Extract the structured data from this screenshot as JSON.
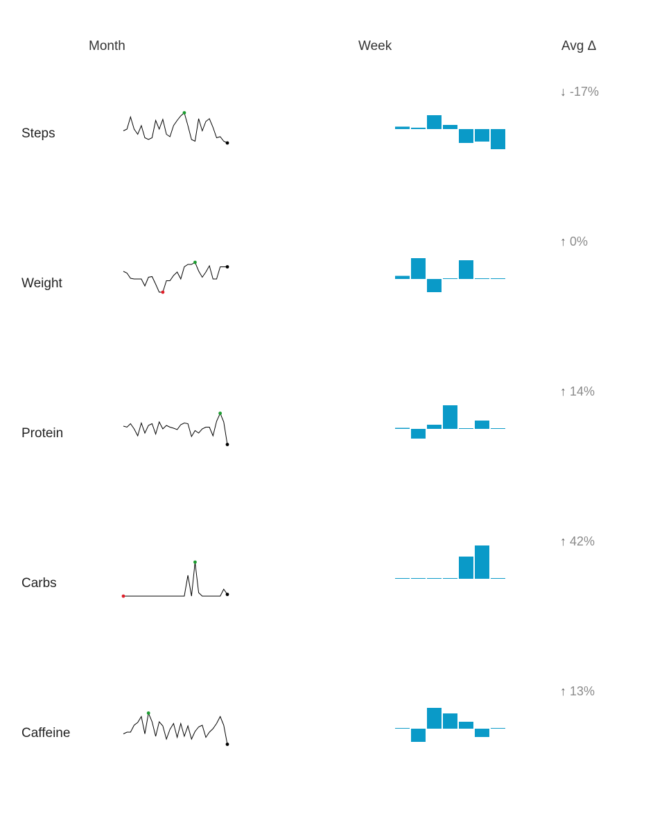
{
  "headers": {
    "month": "Month",
    "week": "Week",
    "avg": "Avg Δ"
  },
  "colors": {
    "bar": "#0a9ac8",
    "spark_line": "#000000",
    "max_dot": "#1a9c2e",
    "min_dot": "#e0202a",
    "last_dot": "#000000",
    "delta_text": "#8a8a8a"
  },
  "chart_data": [
    {
      "type": "line",
      "metric": "Steps",
      "avg_delta": "-17%",
      "delta_arrow": "↓",
      "month": [
        0.45,
        0.5,
        0.85,
        0.5,
        0.35,
        0.6,
        0.25,
        0.2,
        0.25,
        0.75,
        0.5,
        0.78,
        0.35,
        0.28,
        0.6,
        0.75,
        0.88,
        0.97,
        0.6,
        0.2,
        0.15,
        0.8,
        0.45,
        0.72,
        0.8,
        0.55,
        0.25,
        0.28,
        0.15,
        0.1
      ],
      "month_max_index": 17,
      "month_min_index": null,
      "week": [
        0.035,
        0.02,
        0.2,
        0.06,
        -0.2,
        -0.18,
        -0.29
      ]
    },
    {
      "type": "line",
      "metric": "Weight",
      "avg_delta": "0%",
      "delta_arrow": "↑",
      "month": [
        0.72,
        0.67,
        0.52,
        0.5,
        0.5,
        0.5,
        0.3,
        0.55,
        0.57,
        0.35,
        0.12,
        0.12,
        0.45,
        0.45,
        0.6,
        0.7,
        0.5,
        0.85,
        0.92,
        0.92,
        0.98,
        0.73,
        0.55,
        0.7,
        0.88,
        0.5,
        0.5,
        0.85,
        0.85,
        0.85
      ],
      "month_max_index": 20,
      "month_min_index": 11,
      "week": [
        0.045,
        0.3,
        -0.19,
        0,
        0.27,
        0,
        0
      ]
    },
    {
      "type": "line",
      "metric": "Protein",
      "avg_delta": "14%",
      "delta_arrow": "↑",
      "month": [
        0.58,
        0.55,
        0.65,
        0.5,
        0.3,
        0.67,
        0.38,
        0.6,
        0.65,
        0.35,
        0.7,
        0.5,
        0.6,
        0.55,
        0.52,
        0.48,
        0.62,
        0.67,
        0.65,
        0.28,
        0.45,
        0.38,
        0.5,
        0.55,
        0.55,
        0.3,
        0.72,
        0.95,
        0.7,
        0.05
      ],
      "month_max_index": 27,
      "month_min_index": null,
      "week": [
        0.015,
        -0.14,
        0.06,
        0.34,
        0,
        0.12,
        0
      ]
    },
    {
      "type": "line",
      "metric": "Carbs",
      "avg_delta": "42%",
      "delta_arrow": "↑",
      "month": [
        0.0,
        0.0,
        0.0,
        0.0,
        0.0,
        0.0,
        0.0,
        0.0,
        0.0,
        0.0,
        0.0,
        0.0,
        0.0,
        0.0,
        0.0,
        0.0,
        0.0,
        0.0,
        0.6,
        0.0,
        0.98,
        0.1,
        0.0,
        0.0,
        0.0,
        0.0,
        0.0,
        0.0,
        0.2,
        0.05
      ],
      "month_max_index": 20,
      "month_min_index": 0,
      "week": [
        0,
        0,
        0,
        0,
        0.32,
        0.48,
        0
      ]
    },
    {
      "type": "line",
      "metric": "Caffeine",
      "avg_delta": "13%",
      "delta_arrow": "↑",
      "month": [
        0.35,
        0.4,
        0.4,
        0.6,
        0.68,
        0.85,
        0.35,
        0.95,
        0.7,
        0.28,
        0.7,
        0.58,
        0.2,
        0.48,
        0.65,
        0.25,
        0.65,
        0.28,
        0.58,
        0.2,
        0.42,
        0.55,
        0.6,
        0.25,
        0.4,
        0.5,
        0.65,
        0.85,
        0.6,
        0.05
      ],
      "month_max_index": 7,
      "month_min_index": null,
      "week": [
        0,
        -0.19,
        0.3,
        0.22,
        0.1,
        -0.12,
        0
      ]
    }
  ]
}
